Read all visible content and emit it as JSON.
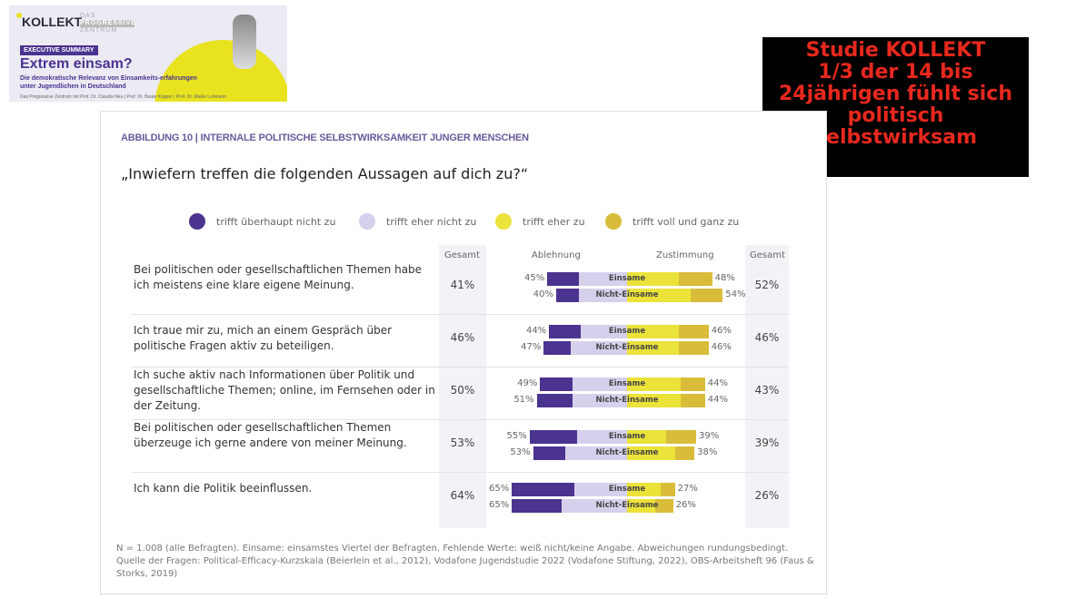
{
  "thumbnail": {
    "logo": "KOLLEKT",
    "partner_top": "DAS",
    "partner_mid": "PROGRESSIVE",
    "partner_bot": "ZENTRUM",
    "badge": "EXECUTIVE SUMMARY",
    "title": "Extrem einsam?",
    "subtitle": "Die demokratische Relevanz von Einsamkeits-erfahrungen unter Jugendlichen in Deutschland",
    "authors": "Das Progressive Zentrum mit Prof. Dr. Claudia Neu | Prof. Dr. Beate Küpper | Prof. Dr. Maike Luhmann"
  },
  "note": {
    "lines": [
      "Studie KOLLEKT",
      "1/3 der 14 bis",
      "24jährigen fühlt sich",
      "politisch",
      "selbstwirksam"
    ]
  },
  "chart_data": {
    "type": "bar",
    "title": "ABBILDUNG 10 | INTERNALE POLITISCHE SELBSTWIRKSAMKEIT JUNGER MENSCHEN",
    "subtitle": "„Inwiefern treffen die folgenden Aussagen auf dich zu?“",
    "legend": [
      {
        "label": "trifft überhaupt nicht zu",
        "color": "#4b3390"
      },
      {
        "label": "trifft eher nicht zu",
        "color": "#d6d0ec"
      },
      {
        "label": "trifft eher zu",
        "color": "#ebe23a"
      },
      {
        "label": "trifft voll und ganz zu",
        "color": "#d9bd3a"
      }
    ],
    "headers": {
      "gesamt_left": "Gesamt",
      "ablehnung": "Ablehnung",
      "zustimmung": "Zustimmung",
      "gesamt_right": "Gesamt"
    },
    "group_labels": [
      "Einsame",
      "Nicht-Einsame"
    ],
    "rows": [
      {
        "question": "Bei politischen oder gesellschaftlichen Themen habe ich meistens eine klare eigene Meinung.",
        "gesamt_ablehnung": "41%",
        "gesamt_zustimmung": "52%",
        "bars": [
          {
            "group": "Einsame",
            "ablehnung": "45%",
            "zustimmung": "48%",
            "values": [
              18,
              27,
              29,
              19
            ]
          },
          {
            "group": "Nicht-Einsame",
            "ablehnung": "40%",
            "zustimmung": "54%",
            "values": [
              13,
              27,
              36,
              18
            ]
          }
        ]
      },
      {
        "question": "Ich traue mir zu, mich an einem Gespräch über politische Fragen aktiv zu beteiligen.",
        "gesamt_ablehnung": "46%",
        "gesamt_zustimmung": "46%",
        "bars": [
          {
            "group": "Einsame",
            "ablehnung": "44%",
            "zustimmung": "46%",
            "values": [
              18,
              26,
              29,
              17
            ]
          },
          {
            "group": "Nicht-Einsame",
            "ablehnung": "47%",
            "zustimmung": "46%",
            "values": [
              15,
              32,
              29,
              17
            ]
          }
        ]
      },
      {
        "question": "Ich suche aktiv nach Informationen über Politik und gesellschaftliche Themen; online, im Fernsehen oder in der Zeitung.",
        "gesamt_ablehnung": "50%",
        "gesamt_zustimmung": "43%",
        "bars": [
          {
            "group": "Einsame",
            "ablehnung": "49%",
            "zustimmung": "44%",
            "values": [
              18,
              31,
              30,
              14
            ]
          },
          {
            "group": "Nicht-Einsame",
            "ablehnung": "51%",
            "zustimmung": "44%",
            "values": [
              20,
              31,
              30,
              14
            ]
          }
        ]
      },
      {
        "question": "Bei politischen oder gesellschaftlichen Themen überzeuge ich gerne andere von meiner Meinung.",
        "gesamt_ablehnung": "53%",
        "gesamt_zustimmung": "39%",
        "bars": [
          {
            "group": "Einsame",
            "ablehnung": "55%",
            "zustimmung": "39%",
            "values": [
              27,
              28,
              22,
              17
            ]
          },
          {
            "group": "Nicht-Einsame",
            "ablehnung": "53%",
            "zustimmung": "38%",
            "values": [
              18,
              35,
              27,
              11
            ]
          }
        ]
      },
      {
        "question": "Ich kann die Politik beeinflussen.",
        "gesamt_ablehnung": "64%",
        "gesamt_zustimmung": "26%",
        "bars": [
          {
            "group": "Einsame",
            "ablehnung": "65%",
            "zustimmung": "27%",
            "values": [
              35,
              30,
              19,
              8
            ]
          },
          {
            "group": "Nicht-Einsame",
            "ablehnung": "65%",
            "zustimmung": "26%",
            "values": [
              28,
              37,
              16,
              10
            ]
          }
        ]
      }
    ],
    "footnote": "N = 1.008 (alle Befragten). Einsame: einsamstes Viertel der Befragten. Fehlende Werte: weiß nicht/keine Angabe. Abweichungen rundungsbedingt. Quelle der Fragen: Political-Efficacy-Kurzskala (Beierlein et al., 2012), Vodafone Jugendstudie 2022 (Vodafone Stiftung, 2022), OBS-Arbeitsheft 96 (Faus & Storks, 2019)"
  }
}
